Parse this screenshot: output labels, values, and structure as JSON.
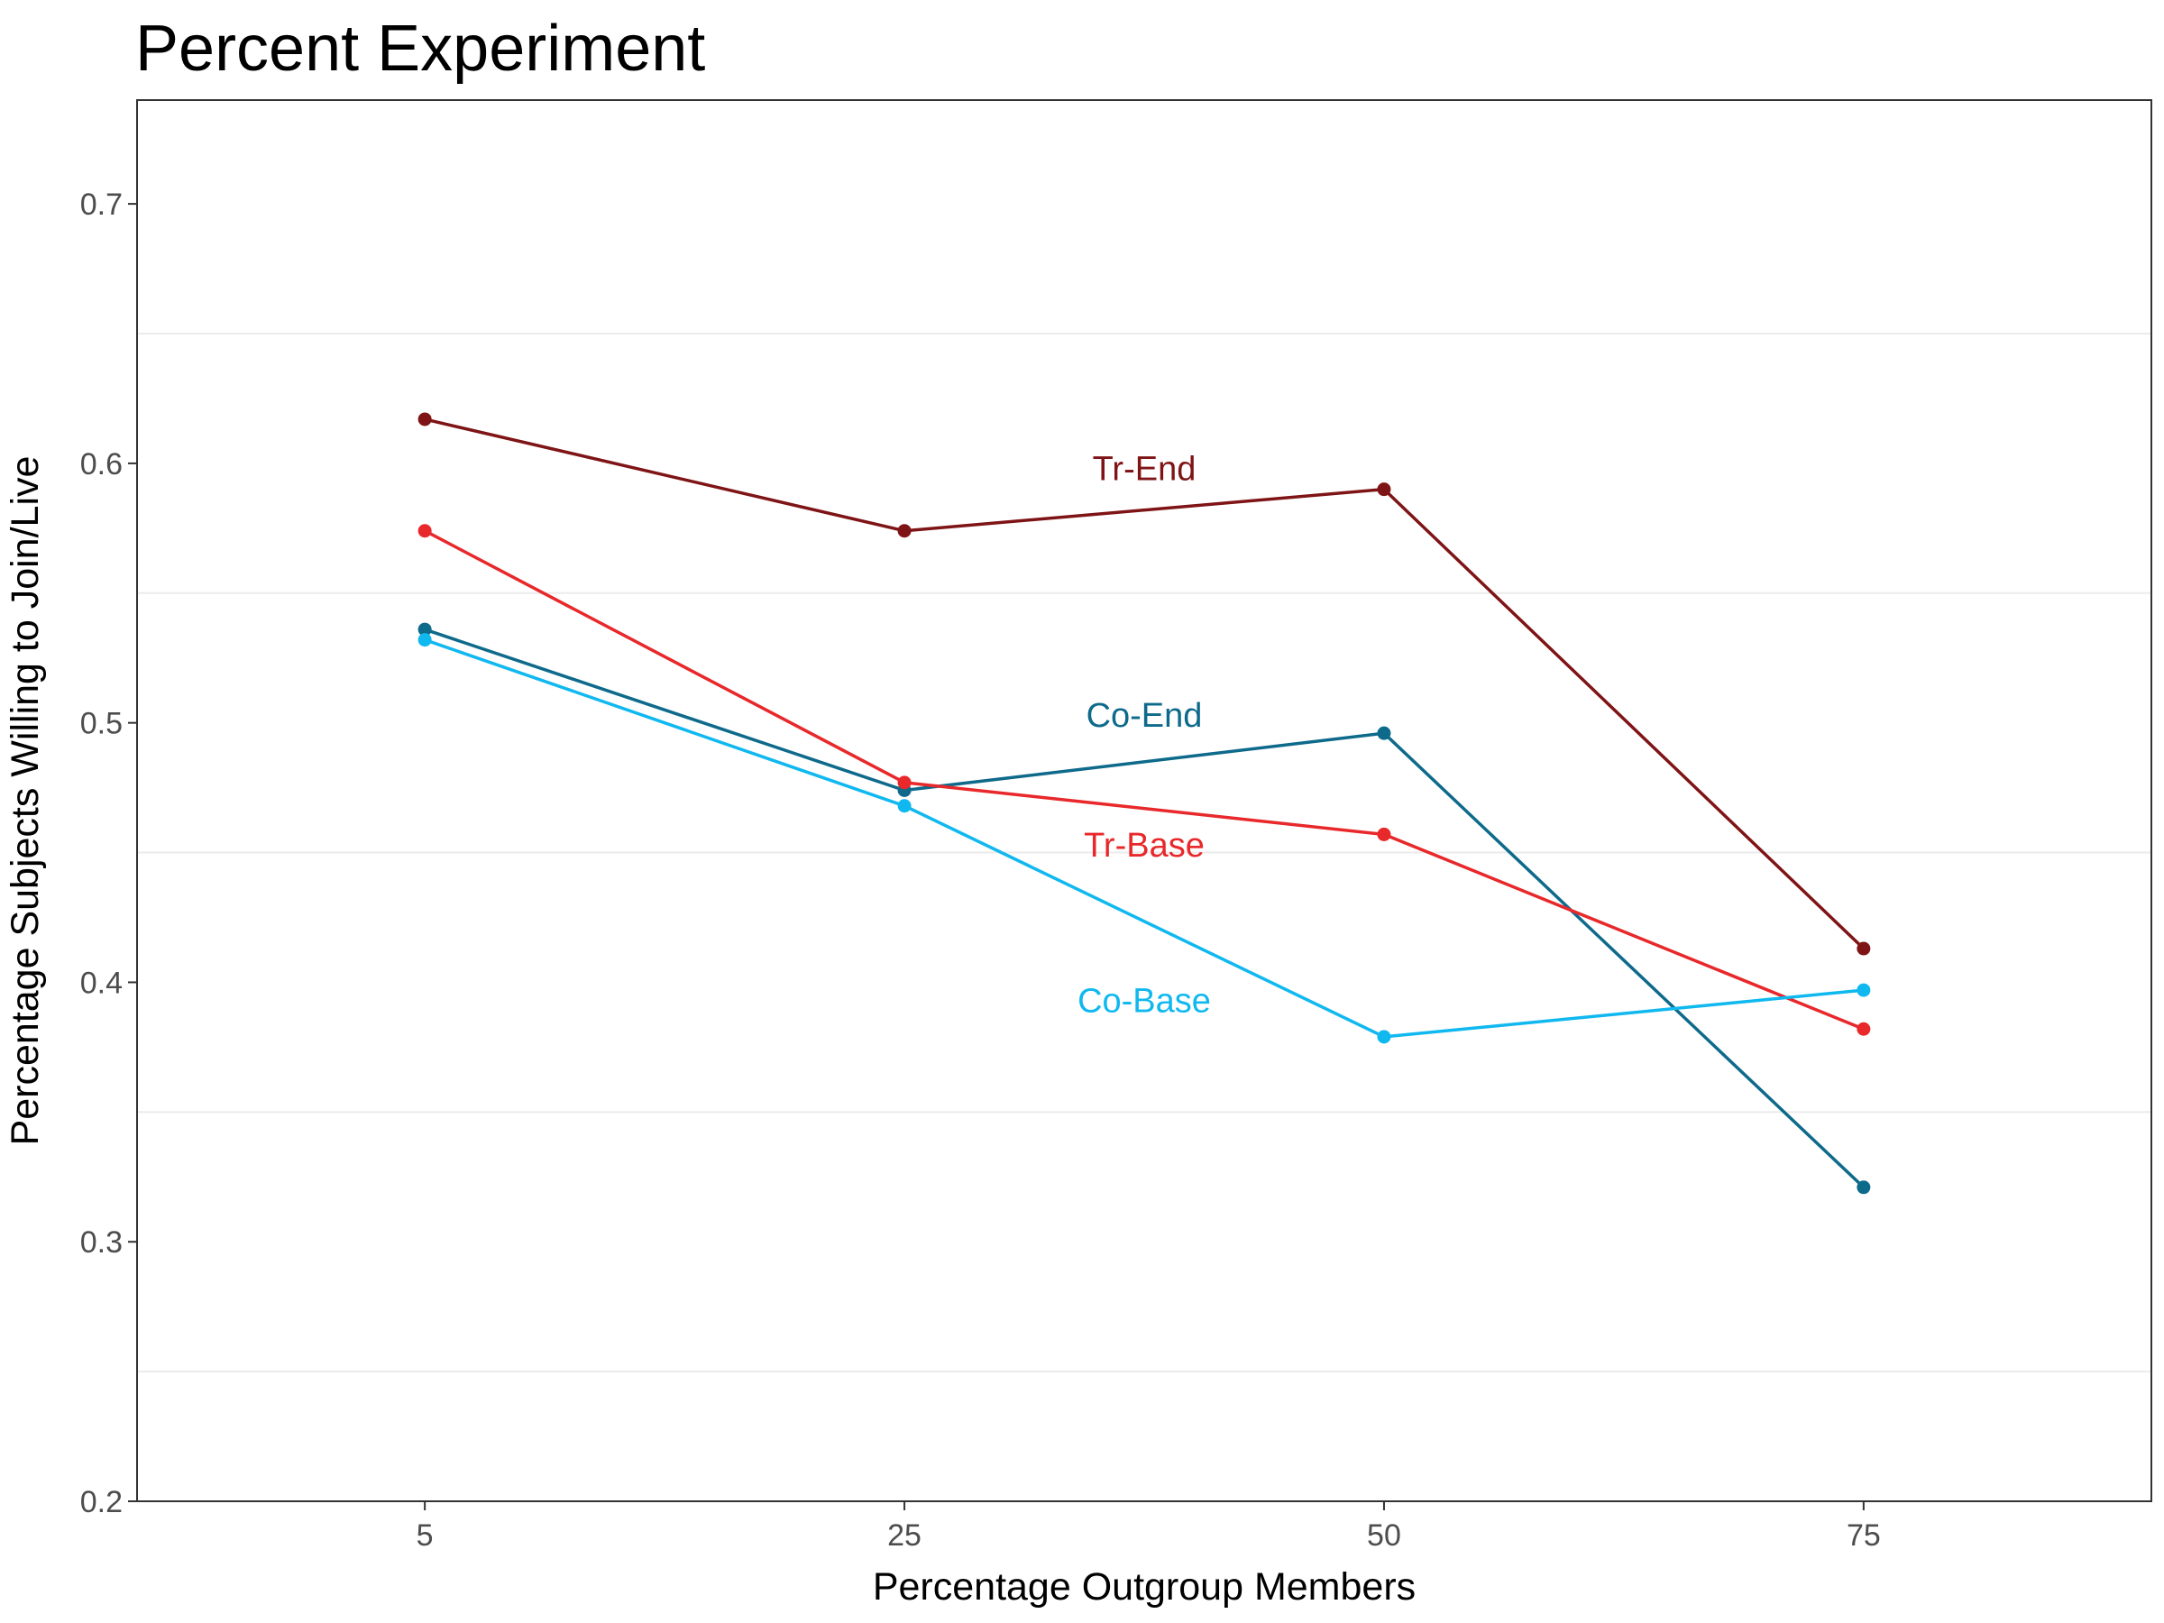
{
  "chart_data": {
    "type": "line",
    "title": "Percent Experiment",
    "xlabel": "Percentage Outgroup Members",
    "ylabel": "Percentage Subjects Willing to Join/Live",
    "categories": [
      "5",
      "25",
      "50",
      "75"
    ],
    "ylim": [
      0.2,
      0.74
    ],
    "yticks": [
      0.2,
      0.3,
      0.4,
      0.5,
      0.6,
      0.7
    ],
    "ytick_labels": [
      "0.2",
      "0.3",
      "0.4",
      "0.5",
      "0.6",
      "0.7"
    ],
    "grid": "horizontal-minor",
    "legend": "direct-labels",
    "series": [
      {
        "name": "Tr-End",
        "color": "#7f1416",
        "values": [
          0.617,
          0.574,
          0.59,
          0.413
        ],
        "label_value": 0.598
      },
      {
        "name": "Co-End",
        "color": "#0e6a8b",
        "values": [
          0.536,
          0.474,
          0.496,
          0.321
        ],
        "label_value": 0.503
      },
      {
        "name": "Tr-Base",
        "color": "#e8282a",
        "values": [
          0.574,
          0.477,
          0.457,
          0.382
        ],
        "label_value": 0.453
      },
      {
        "name": "Co-Base",
        "color": "#10b8f0",
        "values": [
          0.532,
          0.468,
          0.379,
          0.397
        ],
        "label_value": 0.393
      }
    ]
  }
}
